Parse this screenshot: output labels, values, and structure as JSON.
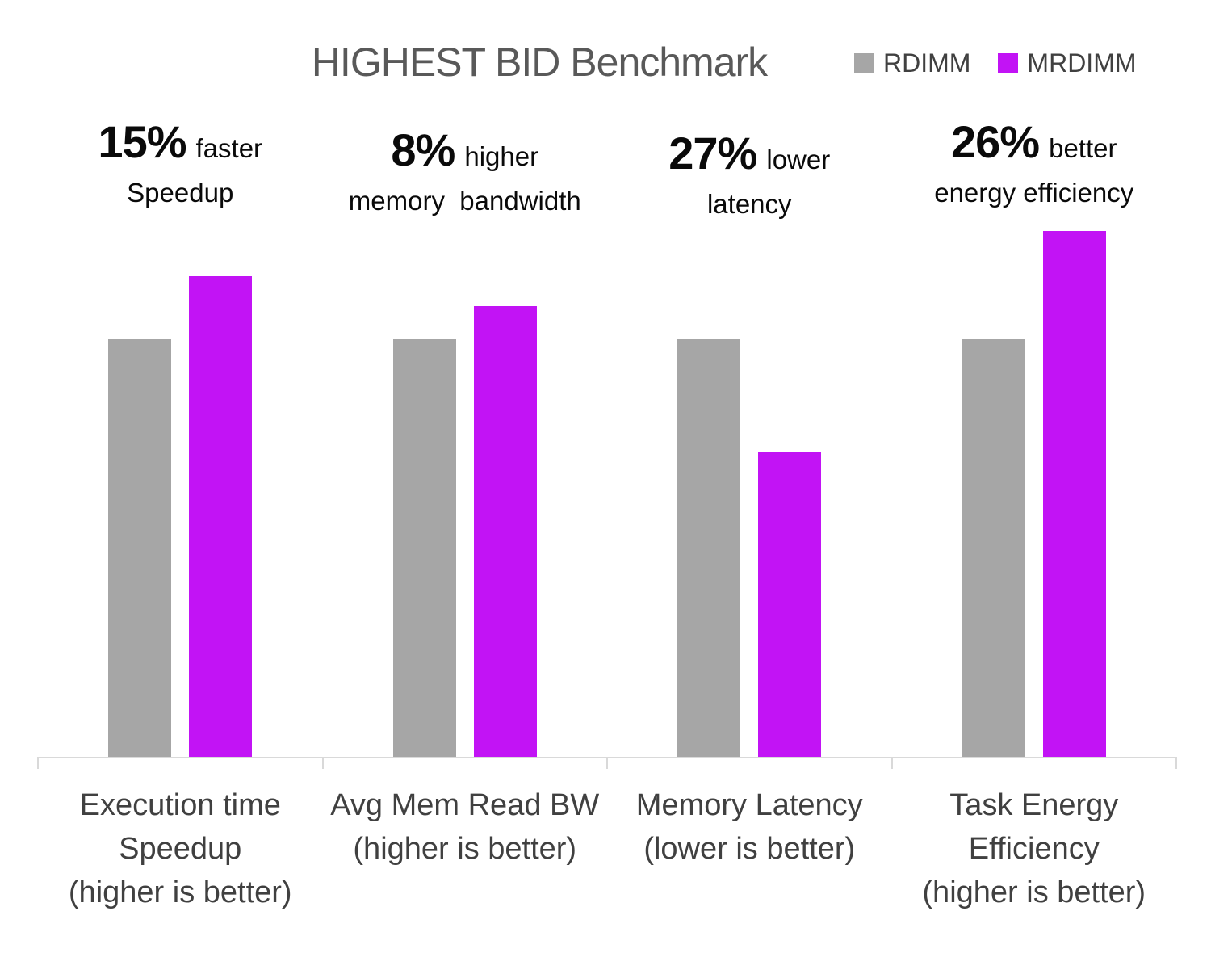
{
  "title": "HIGHEST BID Benchmark",
  "legend": {
    "items": [
      {
        "label": "RDIMM",
        "color": "#a6a6a6"
      },
      {
        "label": "MRDIMM",
        "color": "#c213f5"
      }
    ]
  },
  "colors": {
    "rdimm_bar": "#a6a6a6",
    "mrdimm_bar": "#c213f5",
    "axis_line": "#d9d9d9",
    "title_text": "#595959",
    "category_text": "#404040",
    "annotation_text": "#0a0a0a"
  },
  "chart_data": {
    "type": "bar",
    "title": "HIGHEST BID Benchmark",
    "categories": [
      [
        "Execution time",
        "Speedup",
        "(higher is better)"
      ],
      [
        "Avg Mem Read BW",
        "(higher is better)"
      ],
      [
        "Memory Latency",
        "(lower is better)"
      ],
      [
        "Task Energy",
        "Efficiency",
        "(higher is better)"
      ]
    ],
    "series": [
      {
        "name": "RDIMM",
        "color": "#a6a6a6",
        "values": [
          1.0,
          1.0,
          1.0,
          1.0
        ]
      },
      {
        "name": "MRDIMM",
        "color": "#c213f5",
        "values": [
          1.15,
          1.08,
          0.73,
          1.26
        ]
      }
    ],
    "ylim": [
      0,
      1.27
    ],
    "grid": false,
    "y_axis_shown": false,
    "legend_position": "top-right",
    "annotations": [
      {
        "pct": "15%",
        "word": "faster",
        "line2": "Speedup"
      },
      {
        "pct": "8%",
        "word": "higher",
        "line2": "memory  bandwidth"
      },
      {
        "pct": "27%",
        "word": "lower",
        "line2": "latency"
      },
      {
        "pct": "26%",
        "word": "better",
        "line2": "energy efficiency"
      }
    ]
  }
}
